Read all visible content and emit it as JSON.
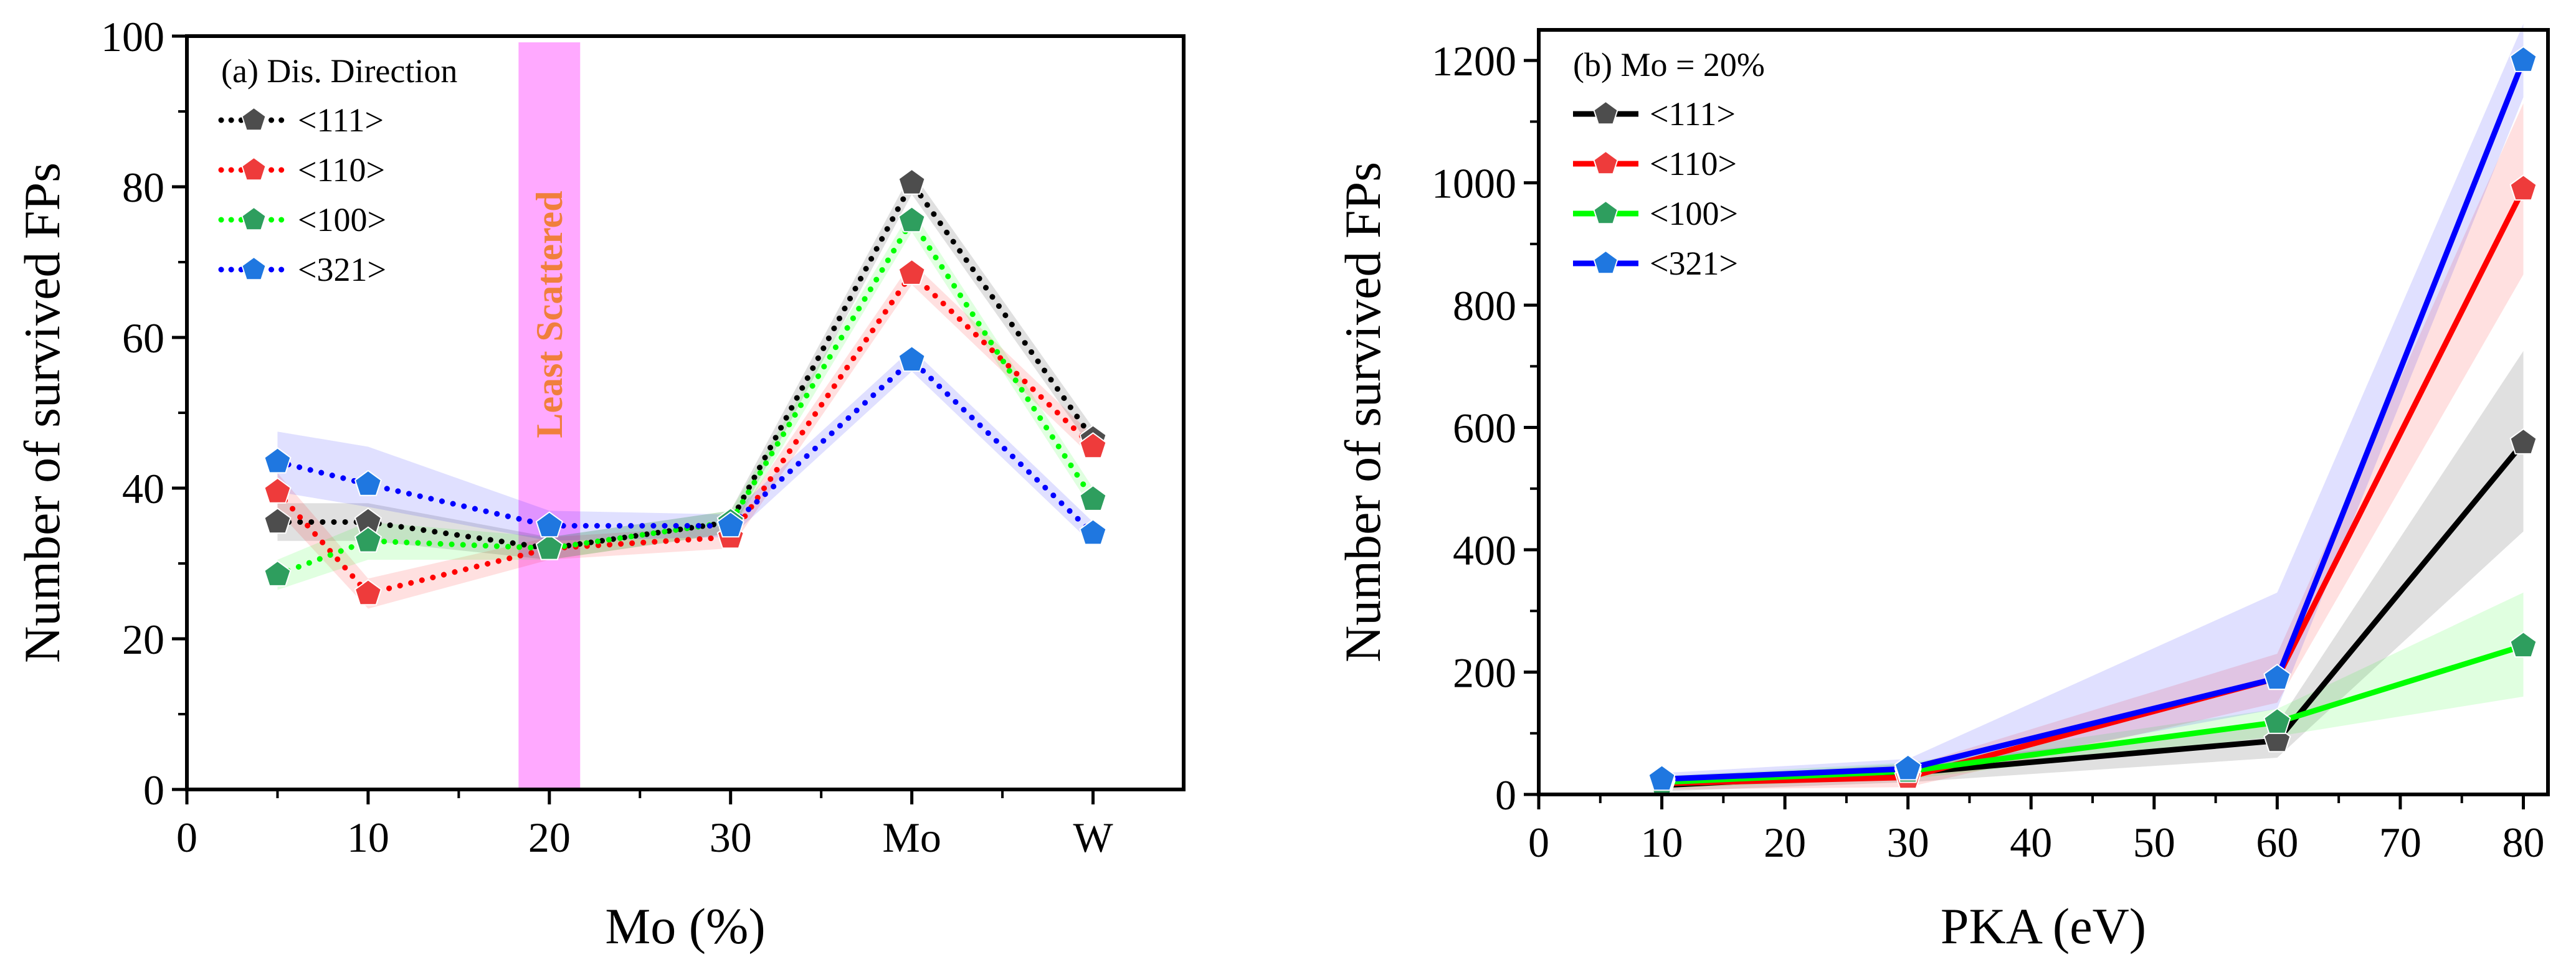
{
  "chart_data": [
    {
      "type": "line",
      "panel_label": "(a) Dis. Direction",
      "title": "",
      "xlabel": "Mo (%)",
      "ylabel": "Number of survived FPs",
      "xlim": [
        0,
        55
      ],
      "ylim": [
        0,
        100
      ],
      "x_ticks": [
        {
          "x": 0,
          "label": "0"
        },
        {
          "x": 10,
          "label": "10"
        },
        {
          "x": 20,
          "label": "20"
        },
        {
          "x": 30,
          "label": "30"
        },
        {
          "x": 40,
          "label": "Mo"
        },
        {
          "x": 50,
          "label": "W"
        }
      ],
      "y_ticks": [
        0,
        20,
        40,
        60,
        80,
        100
      ],
      "x": [
        5,
        10,
        20,
        30,
        40,
        50
      ],
      "line_style": "dotted",
      "highlight": {
        "x_range": [
          18.3,
          21.7
        ],
        "label": "Least Scattered",
        "color": "#ff8cff",
        "label_color": "#f07f3c"
      },
      "legend_position": "top-left",
      "series": [
        {
          "name": "<111>",
          "line_color": "#000000",
          "marker_color": "#4d4d4d",
          "values": [
            35.5,
            35.5,
            32,
            35.5,
            80.5,
            46.5
          ],
          "lower": [
            33,
            33,
            30.5,
            34,
            79,
            45
          ],
          "upper": [
            38,
            38,
            33.5,
            37,
            82,
            48
          ]
        },
        {
          "name": "<110>",
          "line_color": "#ff0000",
          "marker_color": "#ee3b3b",
          "values": [
            39.5,
            26,
            32,
            33.5,
            68.5,
            45.5
          ],
          "lower": [
            37,
            24,
            30.5,
            32,
            67,
            44
          ],
          "upper": [
            42,
            28,
            33.5,
            35,
            70,
            47
          ]
        },
        {
          "name": "<100>",
          "line_color": "#00ff00",
          "marker_color": "#2e9e5e",
          "values": [
            28.5,
            33,
            32,
            35.5,
            75.5,
            38.5
          ],
          "lower": [
            26.5,
            30.5,
            30.5,
            34,
            74,
            37
          ],
          "upper": [
            30.5,
            35.5,
            33.5,
            37,
            77,
            40
          ]
        },
        {
          "name": "<321>",
          "line_color": "#0000ff",
          "marker_color": "#1f77e0",
          "values": [
            43.5,
            40.5,
            35,
            35,
            57,
            34
          ],
          "lower": [
            39.5,
            37.5,
            33,
            33.5,
            55.5,
            32.5
          ],
          "upper": [
            47.5,
            45.5,
            37,
            36.5,
            58.5,
            35.5
          ]
        }
      ]
    },
    {
      "type": "line",
      "panel_label": "(b) Mo = 20%",
      "title": "",
      "xlabel": "PKA (eV)",
      "ylabel": "Number of survived FPs",
      "xlim": [
        0,
        82
      ],
      "ylim": [
        0,
        1250
      ],
      "x_ticks": [
        0,
        10,
        20,
        30,
        40,
        50,
        60,
        70,
        80
      ],
      "y_ticks": [
        0,
        200,
        400,
        600,
        800,
        1000,
        1200
      ],
      "x": [
        10,
        30,
        60,
        80
      ],
      "line_style": "solid",
      "legend_position": "top-left",
      "series": [
        {
          "name": "<111>",
          "line_color": "#000000",
          "marker_color": "#4d4d4d",
          "values": [
            15,
            35,
            88,
            575
          ],
          "lower": [
            5,
            20,
            60,
            430
          ],
          "upper": [
            25,
            50,
            115,
            725
          ]
        },
        {
          "name": "<110>",
          "line_color": "#ff0000",
          "marker_color": "#ee3b3b",
          "values": [
            18,
            28,
            190,
            990
          ],
          "lower": [
            8,
            12,
            150,
            850
          ],
          "upper": [
            28,
            45,
            230,
            1130
          ]
        },
        {
          "name": "<100>",
          "line_color": "#00ff00",
          "marker_color": "#2e9e5e",
          "values": [
            20,
            38,
            118,
            243
          ],
          "lower": [
            10,
            25,
            95,
            160
          ],
          "upper": [
            30,
            52,
            140,
            330
          ]
        },
        {
          "name": "<321>",
          "line_color": "#0000ff",
          "marker_color": "#1f77e0",
          "values": [
            25,
            42,
            190,
            1200
          ],
          "lower": [
            15,
            28,
            140,
            1140
          ],
          "upper": [
            35,
            58,
            330,
            1260
          ]
        }
      ]
    }
  ]
}
